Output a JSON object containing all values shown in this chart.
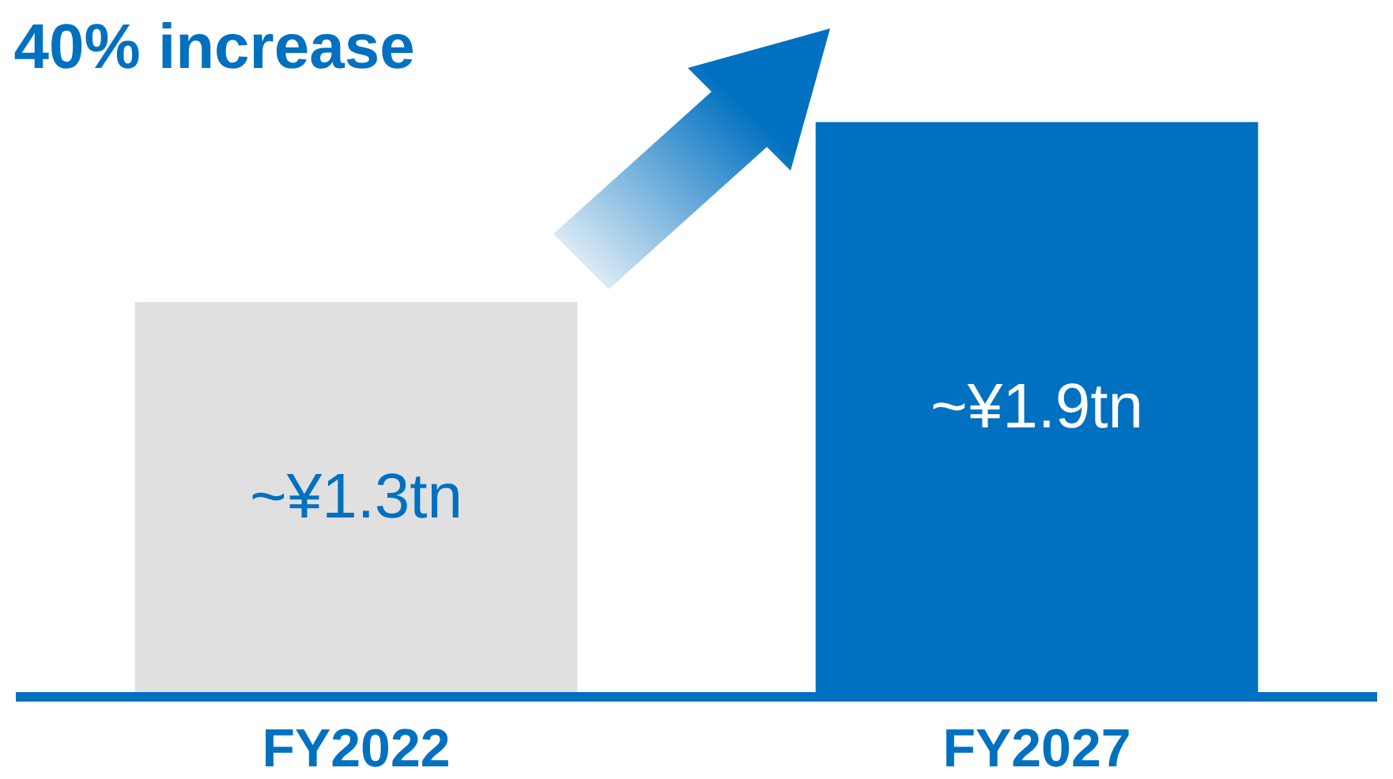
{
  "chart_data": {
    "type": "bar",
    "title": "40% increase",
    "categories": [
      "FY2022",
      "FY2027"
    ],
    "values": [
      1.3,
      1.9
    ],
    "colors": [
      "#e0e0e0",
      "#0070c0"
    ],
    "value_labels": [
      "~¥1.3tn",
      "~¥1.9tn"
    ]
  }
}
